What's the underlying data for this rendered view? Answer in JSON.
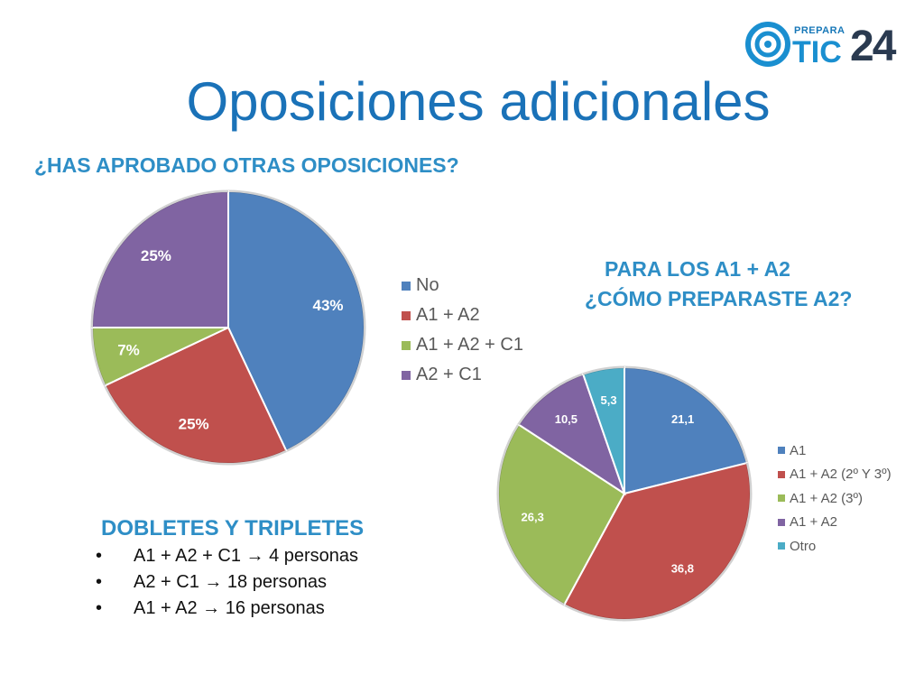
{
  "logo": {
    "prepara": "PREPARA",
    "tic": "TIC",
    "num": "24"
  },
  "title": "Oposiciones adicionales",
  "question1": "¿HAS APROBADO OTRAS OPOSICIONES?",
  "question2_line1": "PARA LOS A1 + A2",
  "question2_line2": "¿CÓMO PREPARASTE A2?",
  "doubles": {
    "heading": "DOBLETES Y TRIPLETES",
    "items": [
      "A1 + A2 + C1 → 4 personas",
      "A2 + C1 → 18 personas",
      "A1 + A2 → 16 personas"
    ]
  },
  "chart_data": [
    {
      "type": "pie",
      "title": "¿HAS APROBADO OTRAS OPOSICIONES?",
      "categories": [
        "No",
        "A1 + A2",
        "A1 + A2 + C1",
        "A2 + C1"
      ],
      "values": [
        43,
        25,
        7,
        25
      ],
      "labels": [
        "43%",
        "25%",
        "7%",
        "25%"
      ],
      "colors": [
        "#4f81bd",
        "#c0504d",
        "#9bbb59",
        "#8064a2"
      ],
      "legend": "right"
    },
    {
      "type": "pie",
      "title": "¿CÓMO PREPARASTE A2?",
      "categories": [
        "A1",
        "A1 + A2 (2º Y 3º)",
        "A1 + A2 (3º)",
        "A1 + A2",
        "Otro"
      ],
      "values": [
        21.1,
        36.8,
        26.3,
        10.5,
        5.3
      ],
      "labels": [
        "21,1",
        "36,8",
        "26,3",
        "10,5",
        "5,3"
      ],
      "colors": [
        "#4f81bd",
        "#c0504d",
        "#9bbb59",
        "#8064a2",
        "#4bacc6"
      ],
      "legend": "right"
    }
  ]
}
